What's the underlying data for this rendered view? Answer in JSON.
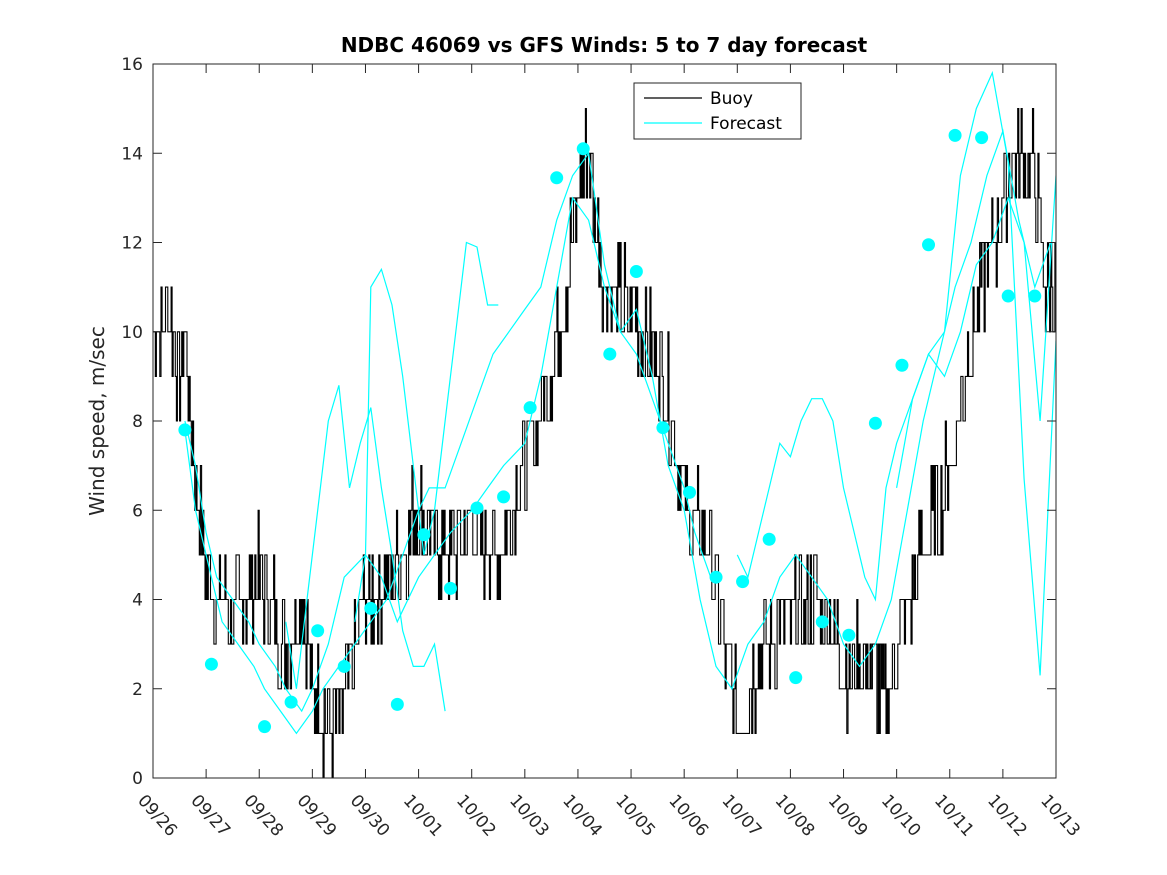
{
  "chart_data": {
    "type": "line",
    "title": "NDBC 46069 vs GFS Winds: 5 to 7 day forecast",
    "xlabel": "",
    "ylabel": "Wind speed, m/sec",
    "xlim": [
      0,
      17
    ],
    "ylim": [
      0,
      16
    ],
    "x_unit": "days since 09/26",
    "y_ticks": [
      0,
      2,
      4,
      6,
      8,
      10,
      12,
      14,
      16
    ],
    "x_ticks": [
      {
        "x": 0,
        "label": "09/26"
      },
      {
        "x": 1,
        "label": "09/27"
      },
      {
        "x": 2,
        "label": "09/28"
      },
      {
        "x": 3,
        "label": "09/29"
      },
      {
        "x": 4,
        "label": "09/30"
      },
      {
        "x": 5,
        "label": "10/01"
      },
      {
        "x": 6,
        "label": "10/02"
      },
      {
        "x": 7,
        "label": "10/03"
      },
      {
        "x": 8,
        "label": "10/04"
      },
      {
        "x": 9,
        "label": "10/05"
      },
      {
        "x": 10,
        "label": "10/06"
      },
      {
        "x": 11,
        "label": "10/07"
      },
      {
        "x": 12,
        "label": "10/08"
      },
      {
        "x": 13,
        "label": "10/09"
      },
      {
        "x": 14,
        "label": "10/10"
      },
      {
        "x": 15,
        "label": "10/11"
      },
      {
        "x": 16,
        "label": "10/12"
      },
      {
        "x": 17,
        "label": "10/13"
      }
    ],
    "legend": {
      "position": "top-center",
      "entries": [
        {
          "name": "Buoy",
          "color": "#000000"
        },
        {
          "name": "Forecast",
          "color": "#00ffff"
        }
      ]
    },
    "series": [
      {
        "name": "Buoy",
        "color": "#000000",
        "style": "step-noisy",
        "x": [
          0.0,
          0.3,
          0.5,
          0.6,
          0.7,
          1.0,
          1.5,
          2.0,
          2.5,
          2.8,
          3.0,
          3.2,
          3.5,
          4.0,
          4.5,
          5.0,
          5.5,
          6.0,
          6.5,
          7.0,
          7.5,
          8.0,
          8.2,
          8.5,
          9.0,
          9.5,
          9.8,
          10.0,
          10.5,
          11.0,
          11.5,
          12.0,
          12.5,
          12.8,
          13.0,
          13.5,
          13.8,
          14.0,
          14.5,
          15.0,
          15.5,
          16.0,
          16.3,
          16.6,
          16.8,
          17.0
        ],
        "y": [
          10,
          10.5,
          9,
          10,
          8,
          4.5,
          3.5,
          4.5,
          3,
          4,
          2,
          1.5,
          1.2,
          4,
          4.5,
          6,
          5,
          5.5,
          5,
          7,
          9,
          13,
          14,
          11,
          10.5,
          9.5,
          8,
          6,
          5,
          1.2,
          3,
          3.5,
          4,
          3.5,
          2.5,
          2.5,
          1.5,
          3,
          5,
          7,
          10.5,
          13,
          14.2,
          13.5,
          11,
          11
        ]
      },
      {
        "name": "Forecast",
        "color": "#00ffff",
        "style": "line",
        "x": [
          0.6,
          0.8,
          1.0,
          1.2,
          1.5,
          1.8,
          2.0,
          2.3,
          2.5,
          2.8,
          3.0,
          3.3,
          3.6,
          4.0,
          4.3,
          4.6,
          5.0,
          5.3,
          5.6,
          6.0,
          6.3,
          6.6,
          7.0,
          7.3,
          7.6,
          7.9,
          8.2,
          8.5,
          8.8,
          9.1,
          9.4,
          9.7,
          10.0,
          10.3,
          10.6,
          10.9,
          11.2,
          11.5,
          11.8,
          12.1,
          12.4,
          12.7,
          13.0,
          13.3,
          13.6,
          13.9,
          14.2,
          14.5,
          14.8,
          15.1,
          15.4,
          15.7,
          16.0,
          16.3,
          16.6,
          16.9
        ],
        "y": [
          8,
          7,
          5.5,
          4.5,
          4,
          3.5,
          3,
          2.5,
          2,
          1.5,
          2,
          3,
          4.5,
          5,
          4.5,
          3.5,
          4.5,
          5,
          5.5,
          6,
          6.5,
          7,
          7.5,
          9,
          11,
          13,
          12.5,
          11,
          10,
          10.5,
          9,
          7,
          6,
          4,
          2.5,
          2,
          3,
          3.5,
          4.5,
          5,
          4.5,
          4,
          3,
          2.5,
          3,
          4,
          6,
          8,
          9.5,
          11,
          12,
          13.5,
          14.5,
          12.5,
          11,
          12
        ]
      },
      {
        "name": "Forecast",
        "color": "#00ffff",
        "style": "line",
        "x": [
          0.6,
          0.8,
          1.1,
          1.3,
          1.6,
          1.9,
          2.1,
          2.4,
          2.7,
          3.0,
          3.2,
          3.5,
          3.8,
          4.1,
          4.4,
          4.7,
          5.0,
          5.2,
          5.5,
          5.8,
          6.1,
          6.4,
          6.7,
          7.0,
          7.3,
          7.6,
          7.9,
          8.2,
          8.5,
          8.8,
          9.1,
          9.4,
          9.7,
          10.0,
          10.2,
          10.5
        ],
        "y": [
          7.8,
          6,
          4.5,
          3.5,
          3,
          2.5,
          2,
          1.5,
          1,
          1.5,
          2,
          2.5,
          3,
          3.5,
          4,
          5,
          6,
          6.5,
          6.5,
          7.5,
          8.5,
          9.5,
          10,
          10.5,
          11,
          12.5,
          13.5,
          14,
          11.5,
          10,
          9.5,
          8.5,
          7.5,
          6.5,
          5.5,
          4.5
        ]
      },
      {
        "name": "Forecast",
        "color": "#00ffff",
        "style": "line",
        "x": [
          3.8,
          4.0,
          4.1,
          4.3,
          4.5,
          4.7,
          4.9,
          5.1,
          5.3,
          5.5,
          5.7,
          5.9,
          6.1,
          6.3,
          6.5
        ],
        "y": [
          3.5,
          5,
          11,
          11.4,
          10.6,
          9,
          7,
          5,
          6,
          8,
          10,
          12,
          11.9,
          10.6,
          10.6
        ]
      },
      {
        "name": "Forecast",
        "color": "#00ffff",
        "style": "line",
        "x": [
          2.5,
          2.7,
          2.9,
          3.1,
          3.3,
          3.5,
          3.7,
          3.9,
          4.1,
          4.3,
          4.5,
          4.7,
          4.9,
          5.1,
          5.3,
          5.5
        ],
        "y": [
          3.5,
          2,
          4,
          6,
          8,
          8.8,
          6.5,
          7.5,
          8.3,
          6.5,
          5,
          3.3,
          2.5,
          2.5,
          3,
          1.5
        ]
      },
      {
        "name": "Forecast",
        "color": "#00ffff",
        "style": "line",
        "x": [
          11.0,
          11.2,
          11.4,
          11.6,
          11.8,
          12.0,
          12.2,
          12.4,
          12.6,
          12.8,
          13.0,
          13.2,
          13.4,
          13.6,
          13.8,
          14.0,
          14.3,
          14.6,
          14.9,
          15.2,
          15.5,
          15.8,
          16.1,
          16.4,
          16.7,
          17.0
        ],
        "y": [
          5,
          4.5,
          5.5,
          6.5,
          7.5,
          7.2,
          8,
          8.5,
          8.5,
          8,
          6.5,
          5.5,
          4.5,
          4,
          6.5,
          7.5,
          8.5,
          9.5,
          10,
          13.5,
          15,
          15.8,
          13.8,
          6.7,
          2.3,
          9.8
        ]
      },
      {
        "name": "Forecast",
        "color": "#00ffff",
        "style": "line",
        "x": [
          14.0,
          14.3,
          14.6,
          14.9,
          15.2,
          15.5,
          15.8,
          16.1,
          16.4,
          16.7,
          17.0
        ],
        "y": [
          6.5,
          8.5,
          9.5,
          9,
          10,
          11.5,
          12,
          13,
          12,
          8,
          13.5
        ]
      }
    ],
    "markers": {
      "name": "Forecast points",
      "color": "#00ffff",
      "x": [
        0.6,
        1.1,
        2.1,
        2.6,
        3.1,
        3.6,
        4.1,
        4.6,
        5.1,
        5.6,
        6.1,
        6.6,
        7.1,
        7.6,
        8.1,
        8.6,
        9.1,
        9.6,
        10.1,
        10.6,
        11.1,
        11.6,
        12.1,
        12.6,
        13.1,
        13.6,
        14.1,
        14.6,
        15.1,
        15.6,
        16.1,
        16.6
      ],
      "y": [
        7.8,
        2.55,
        1.15,
        1.7,
        3.3,
        2.5,
        3.8,
        1.65,
        5.45,
        4.25,
        6.05,
        6.3,
        8.3,
        13.45,
        14.1,
        9.5,
        11.35,
        7.85,
        6.4,
        4.5,
        4.4,
        5.35,
        2.25,
        3.5,
        3.2,
        7.95,
        9.25,
        11.95,
        14.4,
        14.35,
        10.8,
        10.8
      ]
    }
  }
}
